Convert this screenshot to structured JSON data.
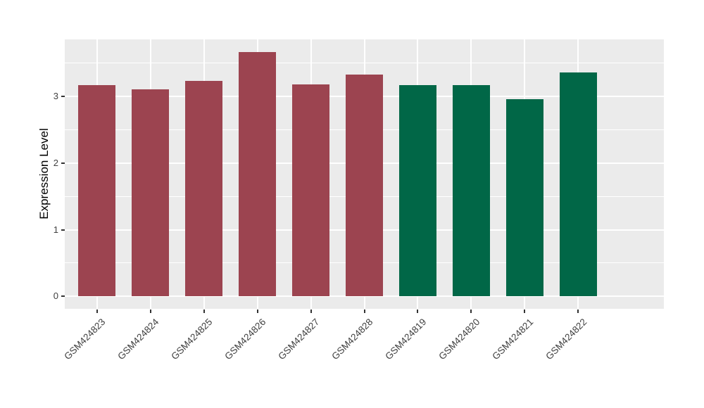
{
  "figure": {
    "background": "#FFFFFF",
    "axis_text_color": "#404040",
    "axis_title_color": "#000000",
    "tick_mark_color": "#333333"
  },
  "chart_data": {
    "type": "bar",
    "title": "",
    "xlabel": "",
    "ylabel": "Expression Level",
    "categories": [
      "GSM424823",
      "GSM424824",
      "GSM424825",
      "GSM424826",
      "GSM424827",
      "GSM424828",
      "GSM424819",
      "GSM424820",
      "GSM424821",
      "GSM424822"
    ],
    "values": [
      3.16,
      3.1,
      3.23,
      3.66,
      3.18,
      3.32,
      3.17,
      3.17,
      2.95,
      3.35
    ],
    "bar_colors": [
      "#9C4450",
      "#9C4450",
      "#9C4450",
      "#9C4450",
      "#9C4450",
      "#9C4450",
      "#016747",
      "#016747",
      "#016747",
      "#016747"
    ],
    "group_colors": {
      "left_group": "#9C4450",
      "right_group": "#016747"
    },
    "yticks": [
      0,
      1,
      2,
      3
    ],
    "ylim": [
      0,
      3.85
    ],
    "bar_width_fraction": 0.7,
    "x_tick_rotation_deg": 45,
    "grid": "on",
    "legend": "none",
    "panel_background": "#EBEBEB",
    "grid_color": "#FFFFFF"
  }
}
